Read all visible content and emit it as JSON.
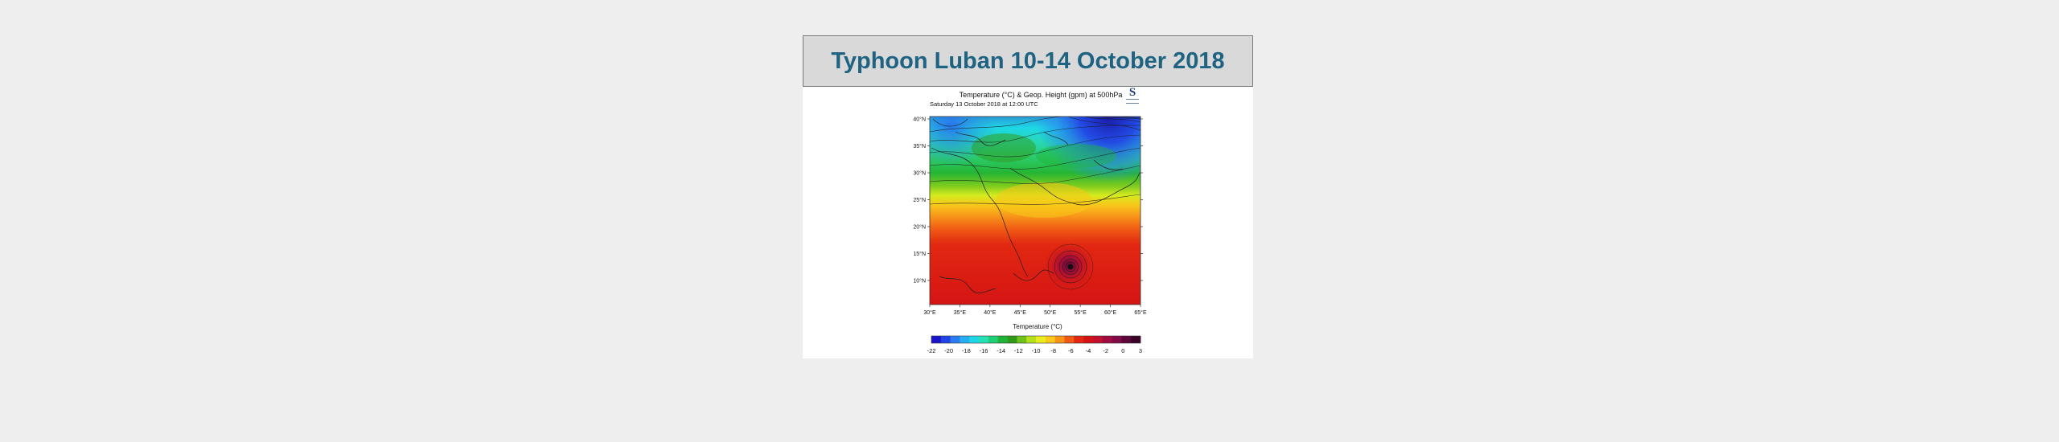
{
  "slide": {
    "title": "Typhoon Luban 10-14 October 2018"
  },
  "map": {
    "title": "Temperature (°C) & Geop. Height (gpm) at 500hPa",
    "subtitle": "Saturday 13 October 2018 at 12:00 UTC",
    "logo_letter": "S",
    "lat_labels": [
      "40°N",
      "35°N",
      "30°N",
      "25°N",
      "20°N",
      "15°N",
      "10°N"
    ],
    "lon_labels": [
      "30°E",
      "35°E",
      "40°E",
      "45°E",
      "50°E",
      "55°E",
      "60°E",
      "65°E"
    ],
    "colorbar_title": "Temperature (°C)",
    "colorbar_labels": [
      "-22",
      "-20",
      "-18",
      "-16",
      "-14",
      "-12",
      "-10",
      "-8",
      "-6",
      "-4",
      "-2",
      "0",
      "3"
    ],
    "colorbar_colors": [
      "#1a14c8",
      "#2244e6",
      "#2a7cf0",
      "#27aef2",
      "#1ed7e6",
      "#24e0b2",
      "#1fcf76",
      "#1fb338",
      "#2e9a18",
      "#6cc21a",
      "#b4e01c",
      "#e8ee1e",
      "#f8c81a",
      "#f8951a",
      "#f05a14",
      "#e22812",
      "#d41414",
      "#c0102e",
      "#a00c3e",
      "#820a46",
      "#5c063a",
      "#3a0428"
    ],
    "colors": {
      "title": "#1f6383",
      "title_bg": "#d9d9d9"
    }
  }
}
